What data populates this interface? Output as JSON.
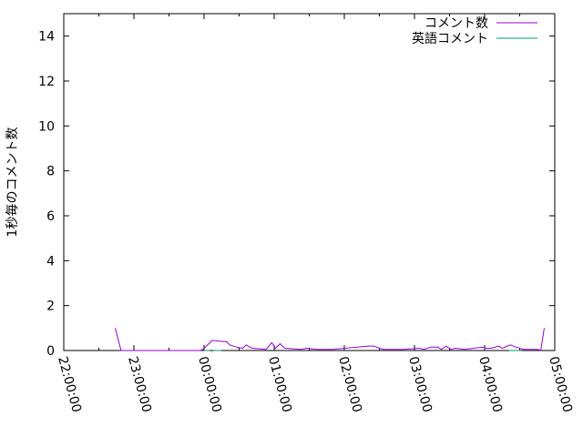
{
  "chart_data": {
    "type": "line",
    "title": "",
    "xlabel": "",
    "ylabel": "1秒毎のコメント数",
    "xlim": [
      "22:00:00",
      "05:00:00"
    ],
    "ylim": [
      0,
      15
    ],
    "x_ticks": [
      "22:00:00",
      "23:00:00",
      "00:00:00",
      "01:00:00",
      "02:00:00",
      "03:00:00",
      "04:00:00",
      "05:00:00"
    ],
    "y_ticks": [
      "0",
      "2",
      "4",
      "6",
      "8",
      "10",
      "12",
      "14"
    ],
    "grid": false,
    "legend_position": "top-right",
    "series": [
      {
        "name": "コメント数",
        "color": "#9400d3",
        "points": [
          [
            "22:44",
            1.0
          ],
          [
            "22:49",
            0
          ],
          [
            "23:57",
            0
          ],
          [
            "00:00",
            0.1
          ],
          [
            "00:04",
            0.3
          ],
          [
            "00:07",
            0.45
          ],
          [
            "00:16",
            0.4
          ],
          [
            "00:19",
            0.4
          ],
          [
            "00:22",
            0.25
          ],
          [
            "00:28",
            0.15
          ],
          [
            "00:33",
            0.1
          ],
          [
            "00:36",
            0.25
          ],
          [
            "00:41",
            0.1
          ],
          [
            "00:53",
            0.05
          ],
          [
            "00:58",
            0.35
          ],
          [
            "01:01",
            0.1
          ],
          [
            "01:05",
            0.3
          ],
          [
            "01:09",
            0.1
          ],
          [
            "01:23",
            0.05
          ],
          [
            "01:28",
            0.1
          ],
          [
            "01:36",
            0.05
          ],
          [
            "01:50",
            0.05
          ],
          [
            "02:21",
            0.2
          ],
          [
            "02:25",
            0.2
          ],
          [
            "02:33",
            0.05
          ],
          [
            "02:51",
            0.05
          ],
          [
            "03:04",
            0.1
          ],
          [
            "03:08",
            0.05
          ],
          [
            "03:14",
            0.15
          ],
          [
            "03:20",
            0.15
          ],
          [
            "03:23",
            0.05
          ],
          [
            "03:27",
            0.2
          ],
          [
            "03:31",
            0.05
          ],
          [
            "03:35",
            0.1
          ],
          [
            "03:43",
            0.05
          ],
          [
            "03:58",
            0.15
          ],
          [
            "04:01",
            0.1
          ],
          [
            "04:06",
            0.1
          ],
          [
            "04:12",
            0.2
          ],
          [
            "04:15",
            0.1
          ],
          [
            "04:22",
            0.25
          ],
          [
            "04:27",
            0.15
          ],
          [
            "04:33",
            0.05
          ],
          [
            "04:45",
            0.05
          ],
          [
            "04:48",
            0
          ],
          [
            "04:51",
            1.0
          ]
        ]
      },
      {
        "name": "英語コメント",
        "color": "#009e73",
        "points": [
          [
            "00:00",
            0
          ],
          [
            "00:05",
            0
          ],
          null,
          [
            "00:08",
            0
          ],
          [
            "00:15",
            0
          ],
          null,
          [
            "04:21",
            0
          ],
          [
            "04:31",
            0
          ]
        ]
      }
    ]
  }
}
